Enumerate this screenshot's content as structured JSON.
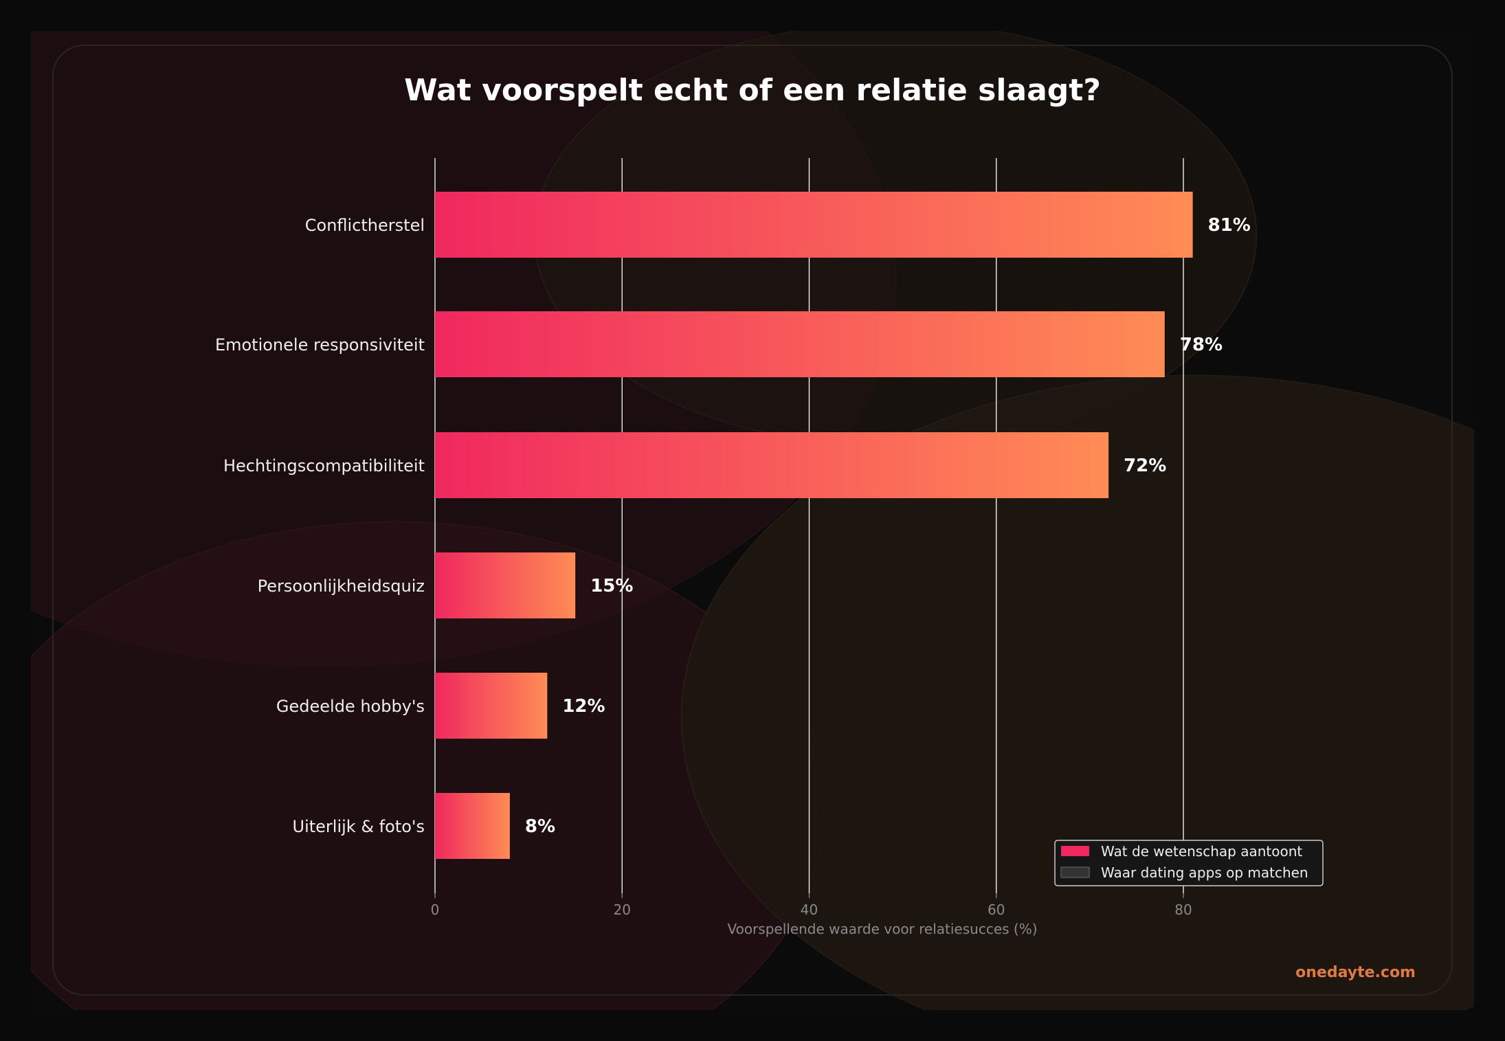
{
  "chart_data": {
    "type": "bar",
    "orientation": "horizontal",
    "title": "Wat voorspelt echt of een relatie slaagt?",
    "xlabel": "Voorspellende waarde voor relatiesucces (%)",
    "ylabel": "",
    "xlim": [
      0,
      95
    ],
    "xticks": [
      0,
      20,
      40,
      60,
      80
    ],
    "grid": "vertical",
    "categories": [
      "Conflictherstel",
      "Emotionele responsiviteit",
      "Hechtingscompatibiliteit",
      "Persoonlijkheidsquiz",
      "Gedeelde hobby's",
      "Uiterlijk & foto's"
    ],
    "values": [
      81,
      78,
      72,
      15,
      12,
      8
    ],
    "value_labels": [
      "81%",
      "78%",
      "72%",
      "15%",
      "12%",
      "8%"
    ],
    "legend": {
      "placement": "lower-right",
      "entries": [
        {
          "label": "Wat de wetenschap aantoont",
          "color": "#f0285f"
        },
        {
          "label": "Waar dating apps op matchen",
          "color": "#333333"
        }
      ]
    },
    "colors": {
      "gradient_start": "#f0285f",
      "gradient_end": "#ff8c55",
      "background": "#0a0a0a"
    }
  },
  "watermark": "onedayte.com"
}
